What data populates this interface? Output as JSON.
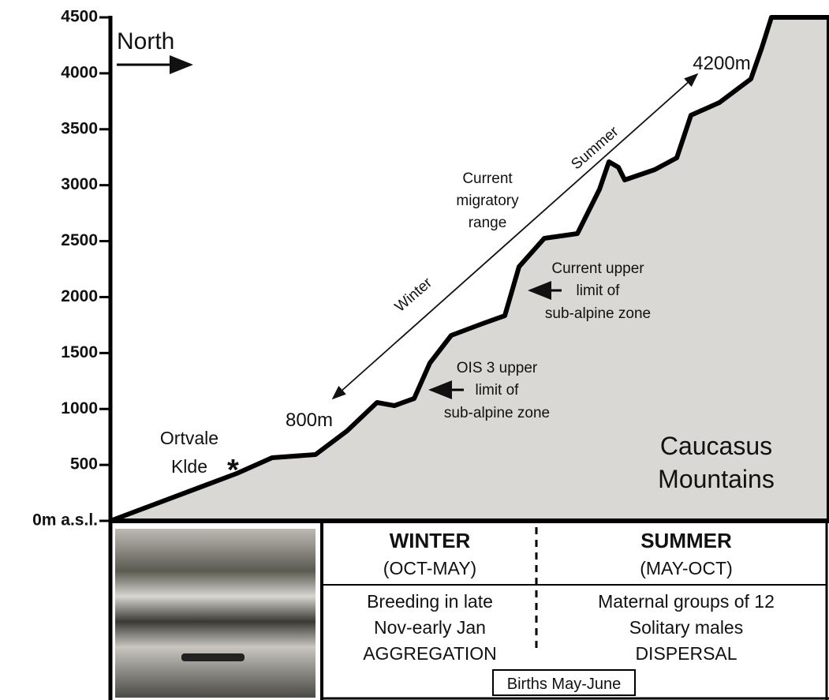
{
  "axis": {
    "ylim": [
      0,
      4500
    ],
    "yticks": [
      {
        "value": 0,
        "label": "0m a.s.l."
      },
      500,
      1000,
      1500,
      2000,
      2500,
      3000,
      3500,
      4000,
      4500
    ]
  },
  "annotations": {
    "north": "North",
    "range_top": "4200m",
    "range_bottom": "800m",
    "summer": "Summer",
    "winter": "Winter",
    "migratory": [
      "Current",
      "migratory",
      "range"
    ],
    "current_limit": [
      "Current upper",
      "limit of",
      "sub-alpine zone"
    ],
    "ois_limit": [
      "OIS 3 upper",
      "limit of",
      "sub-alpine zone"
    ],
    "site": [
      "Ortvale",
      "Klde"
    ],
    "mountains": [
      "Caucasus",
      "Mountains"
    ]
  },
  "table": {
    "headers": [
      [
        "WINTER",
        "(OCT-MAY)"
      ],
      [
        "SUMMER",
        "(MAY-OCT)"
      ]
    ],
    "rows": [
      [
        "Breeding in late",
        "Nov-early Jan",
        "AGGREGATION"
      ],
      [
        "Maternal groups of 12",
        "Solitary males",
        "DISPERSAL"
      ]
    ],
    "footer": "Births May-June"
  }
}
